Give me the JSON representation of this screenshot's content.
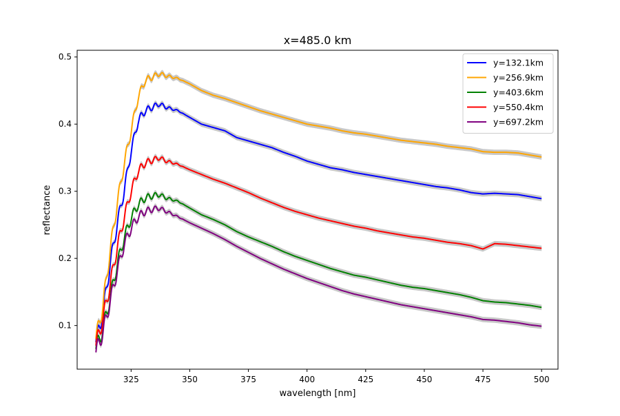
{
  "chart_data": {
    "type": "line",
    "title": "x=485.0 km",
    "xlabel": "wavelength [nm]",
    "ylabel": "reflectance",
    "xlim": [
      302,
      507
    ],
    "ylim": [
      0.035,
      0.51
    ],
    "xticks": [
      325,
      350,
      375,
      400,
      425,
      450,
      475,
      500
    ],
    "xtick_labels": [
      "325",
      "350",
      "375",
      "400",
      "425",
      "450",
      "475",
      "500"
    ],
    "yticks": [
      0.1,
      0.2,
      0.3,
      0.4,
      0.5
    ],
    "ytick_labels": [
      "0.1",
      "0.2",
      "0.3",
      "0.4",
      "0.5"
    ],
    "grid": false,
    "legend_position": "top-right",
    "uncertainty_band_color": "#c8c8c8",
    "series": [
      {
        "name": "y=132.1km",
        "color": "#0000ff",
        "points": [
          [
            310,
            0.075
          ],
          [
            313,
            0.12
          ],
          [
            316,
            0.19
          ],
          [
            319,
            0.25
          ],
          [
            322,
            0.3
          ],
          [
            325,
            0.36
          ],
          [
            328,
            0.405
          ],
          [
            331,
            0.42
          ],
          [
            334,
            0.425
          ],
          [
            337,
            0.43
          ],
          [
            340,
            0.425
          ],
          [
            345,
            0.42
          ],
          [
            350,
            0.41
          ],
          [
            355,
            0.4
          ],
          [
            360,
            0.395
          ],
          [
            365,
            0.39
          ],
          [
            370,
            0.38
          ],
          [
            375,
            0.375
          ],
          [
            380,
            0.37
          ],
          [
            385,
            0.365
          ],
          [
            390,
            0.358
          ],
          [
            395,
            0.352
          ],
          [
            400,
            0.345
          ],
          [
            405,
            0.34
          ],
          [
            410,
            0.335
          ],
          [
            415,
            0.332
          ],
          [
            420,
            0.328
          ],
          [
            425,
            0.325
          ],
          [
            430,
            0.322
          ],
          [
            435,
            0.319
          ],
          [
            440,
            0.316
          ],
          [
            445,
            0.313
          ],
          [
            450,
            0.31
          ],
          [
            455,
            0.307
          ],
          [
            460,
            0.305
          ],
          [
            465,
            0.302
          ],
          [
            470,
            0.298
          ],
          [
            475,
            0.296
          ],
          [
            480,
            0.297
          ],
          [
            485,
            0.296
          ],
          [
            490,
            0.295
          ],
          [
            495,
            0.292
          ],
          [
            500,
            0.289
          ]
        ]
      },
      {
        "name": "y=256.9km",
        "color": "#ffa500",
        "points": [
          [
            310,
            0.08
          ],
          [
            313,
            0.13
          ],
          [
            316,
            0.21
          ],
          [
            319,
            0.28
          ],
          [
            322,
            0.34
          ],
          [
            325,
            0.39
          ],
          [
            328,
            0.44
          ],
          [
            331,
            0.465
          ],
          [
            334,
            0.47
          ],
          [
            337,
            0.475
          ],
          [
            340,
            0.472
          ],
          [
            345,
            0.468
          ],
          [
            350,
            0.46
          ],
          [
            355,
            0.45
          ],
          [
            360,
            0.443
          ],
          [
            365,
            0.438
          ],
          [
            370,
            0.432
          ],
          [
            375,
            0.426
          ],
          [
            380,
            0.42
          ],
          [
            385,
            0.415
          ],
          [
            390,
            0.41
          ],
          [
            395,
            0.405
          ],
          [
            400,
            0.4
          ],
          [
            405,
            0.397
          ],
          [
            410,
            0.394
          ],
          [
            415,
            0.39
          ],
          [
            420,
            0.387
          ],
          [
            425,
            0.385
          ],
          [
            430,
            0.382
          ],
          [
            435,
            0.379
          ],
          [
            440,
            0.376
          ],
          [
            445,
            0.374
          ],
          [
            450,
            0.372
          ],
          [
            455,
            0.37
          ],
          [
            460,
            0.367
          ],
          [
            465,
            0.365
          ],
          [
            470,
            0.363
          ],
          [
            475,
            0.359
          ],
          [
            480,
            0.358
          ],
          [
            485,
            0.358
          ],
          [
            490,
            0.357
          ],
          [
            495,
            0.354
          ],
          [
            500,
            0.351
          ]
        ]
      },
      {
        "name": "y=403.6km",
        "color": "#008000",
        "points": [
          [
            310,
            0.065
          ],
          [
            313,
            0.095
          ],
          [
            316,
            0.14
          ],
          [
            319,
            0.19
          ],
          [
            322,
            0.23
          ],
          [
            325,
            0.26
          ],
          [
            328,
            0.28
          ],
          [
            331,
            0.29
          ],
          [
            334,
            0.293
          ],
          [
            337,
            0.295
          ],
          [
            340,
            0.29
          ],
          [
            345,
            0.285
          ],
          [
            350,
            0.275
          ],
          [
            355,
            0.265
          ],
          [
            360,
            0.258
          ],
          [
            365,
            0.25
          ],
          [
            370,
            0.24
          ],
          [
            375,
            0.232
          ],
          [
            380,
            0.225
          ],
          [
            385,
            0.218
          ],
          [
            390,
            0.21
          ],
          [
            395,
            0.203
          ],
          [
            400,
            0.197
          ],
          [
            405,
            0.191
          ],
          [
            410,
            0.185
          ],
          [
            415,
            0.18
          ],
          [
            420,
            0.175
          ],
          [
            425,
            0.172
          ],
          [
            430,
            0.168
          ],
          [
            435,
            0.164
          ],
          [
            440,
            0.16
          ],
          [
            445,
            0.157
          ],
          [
            450,
            0.155
          ],
          [
            455,
            0.152
          ],
          [
            460,
            0.149
          ],
          [
            465,
            0.146
          ],
          [
            470,
            0.142
          ],
          [
            475,
            0.137
          ],
          [
            480,
            0.135
          ],
          [
            485,
            0.134
          ],
          [
            490,
            0.132
          ],
          [
            495,
            0.13
          ],
          [
            500,
            0.127
          ]
        ]
      },
      {
        "name": "y=550.4km",
        "color": "#ff0000",
        "points": [
          [
            310,
            0.07
          ],
          [
            313,
            0.11
          ],
          [
            316,
            0.16
          ],
          [
            319,
            0.215
          ],
          [
            322,
            0.26
          ],
          [
            325,
            0.3
          ],
          [
            328,
            0.33
          ],
          [
            331,
            0.342
          ],
          [
            334,
            0.346
          ],
          [
            337,
            0.35
          ],
          [
            340,
            0.345
          ],
          [
            345,
            0.34
          ],
          [
            350,
            0.332
          ],
          [
            355,
            0.325
          ],
          [
            360,
            0.318
          ],
          [
            365,
            0.312
          ],
          [
            370,
            0.305
          ],
          [
            375,
            0.298
          ],
          [
            380,
            0.29
          ],
          [
            385,
            0.283
          ],
          [
            390,
            0.276
          ],
          [
            395,
            0.27
          ],
          [
            400,
            0.265
          ],
          [
            405,
            0.26
          ],
          [
            410,
            0.256
          ],
          [
            415,
            0.252
          ],
          [
            420,
            0.248
          ],
          [
            425,
            0.245
          ],
          [
            430,
            0.241
          ],
          [
            435,
            0.238
          ],
          [
            440,
            0.235
          ],
          [
            445,
            0.232
          ],
          [
            450,
            0.23
          ],
          [
            455,
            0.227
          ],
          [
            460,
            0.224
          ],
          [
            465,
            0.222
          ],
          [
            470,
            0.219
          ],
          [
            475,
            0.214
          ],
          [
            480,
            0.222
          ],
          [
            485,
            0.221
          ],
          [
            490,
            0.219
          ],
          [
            495,
            0.217
          ],
          [
            500,
            0.215
          ]
        ]
      },
      {
        "name": "y=697.2km",
        "color": "#800080",
        "points": [
          [
            310,
            0.06
          ],
          [
            313,
            0.09
          ],
          [
            316,
            0.135
          ],
          [
            319,
            0.18
          ],
          [
            322,
            0.22
          ],
          [
            325,
            0.245
          ],
          [
            328,
            0.262
          ],
          [
            331,
            0.27
          ],
          [
            334,
            0.273
          ],
          [
            337,
            0.275
          ],
          [
            340,
            0.27
          ],
          [
            345,
            0.262
          ],
          [
            350,
            0.253
          ],
          [
            355,
            0.245
          ],
          [
            360,
            0.237
          ],
          [
            365,
            0.228
          ],
          [
            370,
            0.218
          ],
          [
            375,
            0.209
          ],
          [
            380,
            0.2
          ],
          [
            385,
            0.192
          ],
          [
            390,
            0.184
          ],
          [
            395,
            0.177
          ],
          [
            400,
            0.17
          ],
          [
            405,
            0.164
          ],
          [
            410,
            0.158
          ],
          [
            415,
            0.152
          ],
          [
            420,
            0.147
          ],
          [
            425,
            0.143
          ],
          [
            430,
            0.139
          ],
          [
            435,
            0.135
          ],
          [
            440,
            0.131
          ],
          [
            445,
            0.128
          ],
          [
            450,
            0.125
          ],
          [
            455,
            0.122
          ],
          [
            460,
            0.119
          ],
          [
            465,
            0.116
          ],
          [
            470,
            0.113
          ],
          [
            475,
            0.109
          ],
          [
            480,
            0.108
          ],
          [
            485,
            0.106
          ],
          [
            490,
            0.104
          ],
          [
            495,
            0.101
          ],
          [
            500,
            0.099
          ]
        ]
      }
    ]
  }
}
